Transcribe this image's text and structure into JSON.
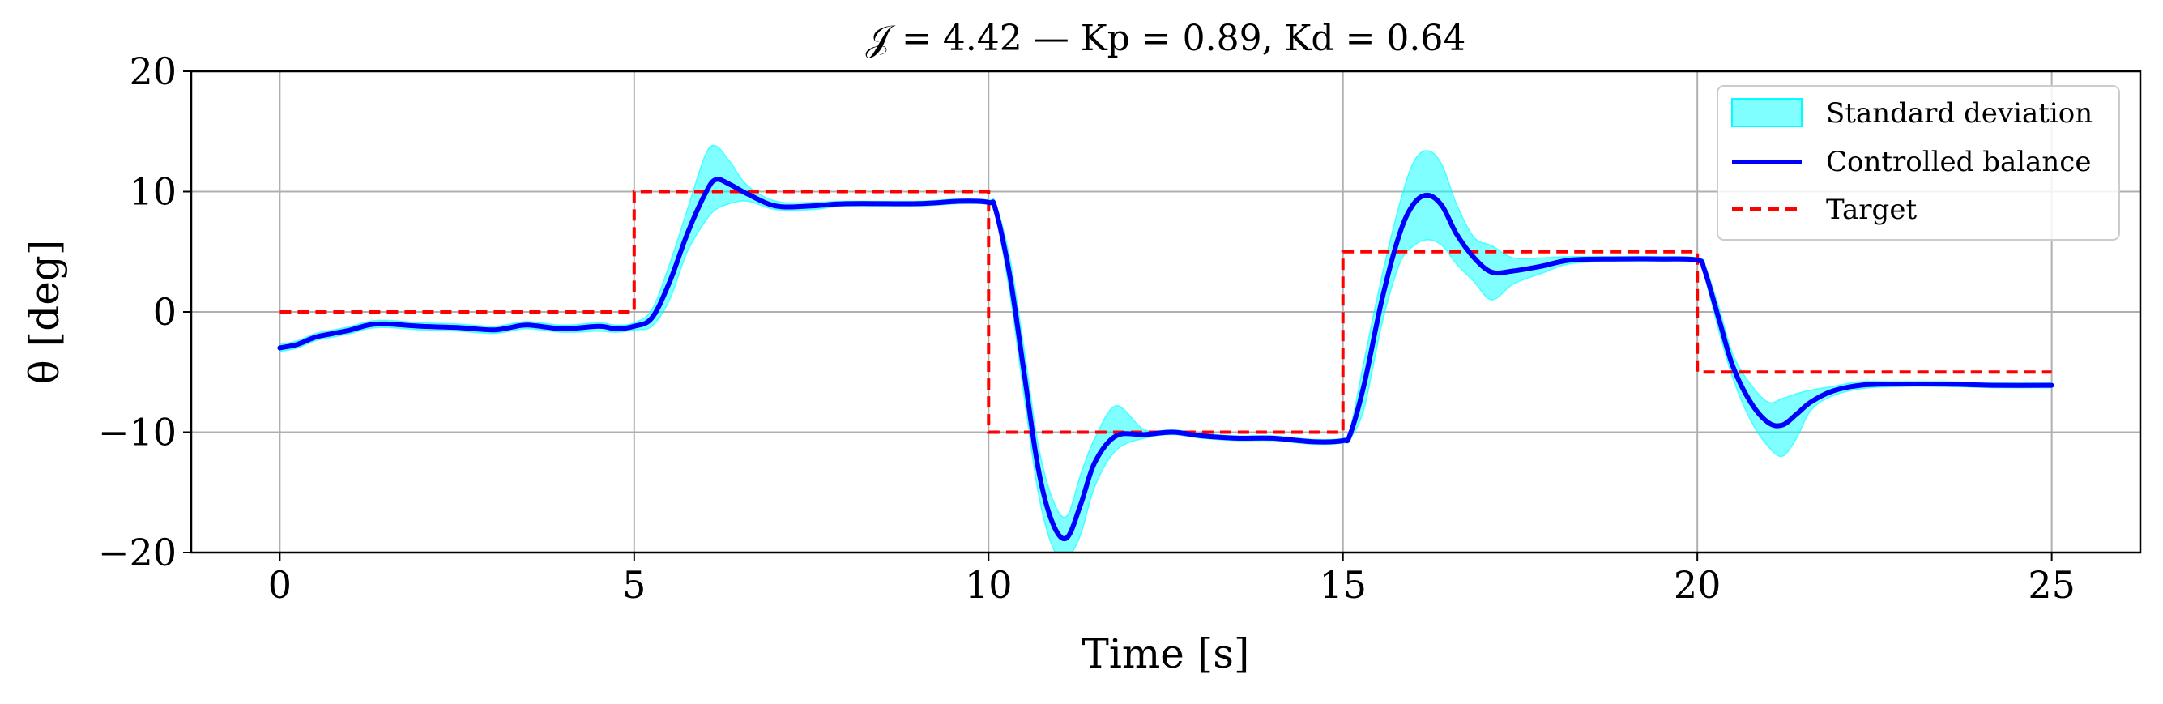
{
  "chart_data": {
    "type": "line",
    "title": "𝒥 = 4.42 — Kp = 0.89, Kd = 0.64",
    "xlabel": "Time [s]",
    "ylabel": "θ [deg]",
    "xlim": [
      -1.25,
      26.25
    ],
    "ylim": [
      -20,
      20
    ],
    "xticks": [
      0,
      5,
      10,
      15,
      20,
      25
    ],
    "yticks": [
      -20,
      -10,
      0,
      10,
      20
    ],
    "xtick_labels": [
      "0",
      "5",
      "10",
      "15",
      "20",
      "25"
    ],
    "ytick_labels": [
      "−20",
      "−10",
      "0",
      "10",
      "20"
    ],
    "grid": true,
    "legend_position": "top-right",
    "legend": [
      "Standard deviation",
      "Controlled balance",
      "Target"
    ],
    "colors": {
      "band": "#00ffff",
      "line": "#0000ff",
      "target": "#ff0000"
    },
    "series": [
      {
        "name": "Controlled balance",
        "x": [
          0,
          0.25,
          0.5,
          0.75,
          1.0,
          1.25,
          1.5,
          2.0,
          2.5,
          3.0,
          3.25,
          3.5,
          4.0,
          4.5,
          4.75,
          5.0,
          5.25,
          5.5,
          5.75,
          6.0,
          6.15,
          6.35,
          6.6,
          7.0,
          7.5,
          8.0,
          9.0,
          9.6,
          10.0,
          10.1,
          10.3,
          10.5,
          10.7,
          10.9,
          11.1,
          11.3,
          11.5,
          11.8,
          12.2,
          12.6,
          13.0,
          13.5,
          14.0,
          14.6,
          15.0,
          15.1,
          15.3,
          15.55,
          15.8,
          16.0,
          16.2,
          16.4,
          16.6,
          16.85,
          17.1,
          17.4,
          17.8,
          18.2,
          18.8,
          19.5,
          20.0,
          20.1,
          20.3,
          20.5,
          20.75,
          21.0,
          21.2,
          21.4,
          21.6,
          21.9,
          22.3,
          22.8,
          23.5,
          24.2,
          25.0
        ],
        "y": [
          -3.0,
          -2.7,
          -2.1,
          -1.8,
          -1.5,
          -1.1,
          -1.0,
          -1.2,
          -1.3,
          -1.5,
          -1.3,
          -1.1,
          -1.4,
          -1.2,
          -1.4,
          -1.2,
          -0.5,
          2.5,
          6.5,
          9.8,
          11.0,
          10.6,
          9.8,
          8.8,
          8.8,
          9.0,
          9.0,
          9.2,
          9.1,
          8.5,
          3.0,
          -5.0,
          -13.0,
          -17.5,
          -18.8,
          -16.0,
          -12.5,
          -10.3,
          -10.2,
          -10.0,
          -10.3,
          -10.5,
          -10.5,
          -10.8,
          -10.7,
          -10.2,
          -6.0,
          1.0,
          6.5,
          9.0,
          9.7,
          8.8,
          6.5,
          4.5,
          3.3,
          3.4,
          3.8,
          4.3,
          4.4,
          4.4,
          4.3,
          3.5,
          -0.5,
          -4.5,
          -7.5,
          -9.2,
          -9.4,
          -8.5,
          -7.5,
          -6.6,
          -6.1,
          -6.0,
          -6.0,
          -6.1,
          -6.1
        ]
      },
      {
        "name": "Standard deviation",
        "x": [
          0,
          0.25,
          0.5,
          0.75,
          1.0,
          1.25,
          1.5,
          2.0,
          2.5,
          3.0,
          3.25,
          3.5,
          4.0,
          4.5,
          4.75,
          5.0,
          5.25,
          5.5,
          5.75,
          6.0,
          6.15,
          6.35,
          6.6,
          7.0,
          7.5,
          8.0,
          9.0,
          9.6,
          10.0,
          10.1,
          10.3,
          10.5,
          10.7,
          10.9,
          11.1,
          11.3,
          11.5,
          11.8,
          12.2,
          12.6,
          13.0,
          13.5,
          14.0,
          14.6,
          15.0,
          15.1,
          15.3,
          15.55,
          15.8,
          16.0,
          16.2,
          16.4,
          16.6,
          16.85,
          17.1,
          17.4,
          17.8,
          18.2,
          18.8,
          19.5,
          20.0,
          20.1,
          20.3,
          20.5,
          20.75,
          21.0,
          21.2,
          21.4,
          21.6,
          21.9,
          22.3,
          22.8,
          23.5,
          24.2,
          25.0
        ],
        "lower": [
          -3.3,
          -3.0,
          -2.4,
          -2.1,
          -1.8,
          -1.4,
          -1.3,
          -1.5,
          -1.6,
          -1.8,
          -1.6,
          -1.4,
          -1.7,
          -1.6,
          -1.7,
          -1.5,
          -1.2,
          1.0,
          5.0,
          7.5,
          8.5,
          9.0,
          9.2,
          8.5,
          8.5,
          8.8,
          8.8,
          9.0,
          8.9,
          8.0,
          1.5,
          -7.0,
          -15.0,
          -19.5,
          -20.5,
          -18.5,
          -14.5,
          -11.5,
          -10.5,
          -10.2,
          -10.5,
          -10.7,
          -10.7,
          -11.0,
          -10.9,
          -10.6,
          -8.0,
          -1.0,
          4.0,
          5.5,
          6.0,
          5.5,
          4.0,
          2.5,
          1.0,
          2.3,
          3.2,
          4.0,
          4.2,
          4.2,
          4.1,
          3.0,
          -1.5,
          -5.5,
          -9.0,
          -11.2,
          -12.0,
          -10.5,
          -8.2,
          -7.0,
          -6.4,
          -6.2,
          -6.2,
          -6.3,
          -6.3
        ],
        "upper": [
          -2.7,
          -2.4,
          -1.8,
          -1.5,
          -1.2,
          -0.8,
          -0.7,
          -0.9,
          -1.0,
          -1.2,
          -1.0,
          -0.8,
          -1.1,
          -0.9,
          -1.1,
          -0.9,
          0.2,
          4.0,
          8.5,
          13.0,
          13.8,
          12.5,
          10.5,
          9.2,
          9.1,
          9.2,
          9.2,
          9.4,
          9.3,
          9.0,
          4.5,
          -3.0,
          -11.0,
          -15.5,
          -17.0,
          -13.5,
          -10.5,
          -7.8,
          -9.8,
          -9.8,
          -10.1,
          -10.3,
          -10.3,
          -10.6,
          -10.5,
          -9.8,
          -4.0,
          3.0,
          9.0,
          12.5,
          13.4,
          12.2,
          9.0,
          6.2,
          5.5,
          4.5,
          4.5,
          4.6,
          4.6,
          4.6,
          4.5,
          4.0,
          0.5,
          -3.5,
          -6.0,
          -7.5,
          -7.2,
          -6.8,
          -6.5,
          -6.2,
          -5.8,
          -5.8,
          -5.8,
          -5.9,
          -5.9
        ]
      },
      {
        "name": "Target",
        "x": [
          0,
          5,
          5,
          10,
          10,
          15,
          15,
          20,
          20,
          25
        ],
        "y": [
          0,
          0,
          10,
          10,
          -10,
          -10,
          5,
          5,
          -5,
          -5
        ]
      }
    ]
  }
}
